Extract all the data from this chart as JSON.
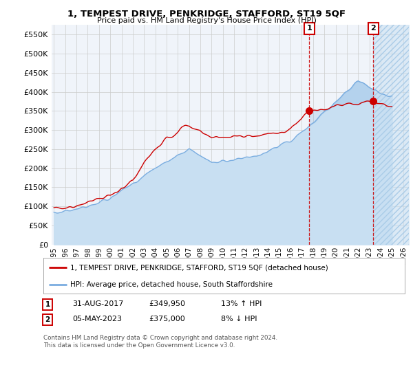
{
  "title": "1, TEMPEST DRIVE, PENKRIDGE, STAFFORD, ST19 5QF",
  "subtitle": "Price paid vs. HM Land Registry's House Price Index (HPI)",
  "ylim": [
    0,
    575000
  ],
  "yticks": [
    0,
    50000,
    100000,
    150000,
    200000,
    250000,
    300000,
    350000,
    400000,
    450000,
    500000,
    550000
  ],
  "xlim_start": 1994.8,
  "xlim_end": 2026.5,
  "xtick_years": [
    1995,
    1996,
    1997,
    1998,
    1999,
    2000,
    2001,
    2002,
    2003,
    2004,
    2005,
    2006,
    2007,
    2008,
    2009,
    2010,
    2011,
    2012,
    2013,
    2014,
    2015,
    2016,
    2017,
    2018,
    2019,
    2020,
    2021,
    2022,
    2023,
    2024,
    2025,
    2026
  ],
  "transaction1_year": 2017.667,
  "transaction1_price": 349950,
  "transaction1_label": "1",
  "transaction1_date": "31-AUG-2017",
  "transaction1_pct": "13%",
  "transaction1_dir": "↑",
  "transaction2_year": 2023.35,
  "transaction2_price": 375000,
  "transaction2_label": "2",
  "transaction2_date": "05-MAY-2023",
  "transaction2_pct": "8%",
  "transaction2_dir": "↓",
  "legend_property": "1, TEMPEST DRIVE, PENKRIDGE, STAFFORD, ST19 5QF (detached house)",
  "legend_hpi": "HPI: Average price, detached house, South Staffordshire",
  "footer1": "Contains HM Land Registry data © Crown copyright and database right 2024.",
  "footer2": "This data is licensed under the Open Government Licence v3.0.",
  "property_color": "#cc0000",
  "hpi_color": "#7aade0",
  "hpi_fill_color": "#c8dff2",
  "grid_color": "#cccccc",
  "bg_color": "#f0f4fa",
  "vline_color": "#cc0000",
  "hatch_color": "#c0d8ee"
}
